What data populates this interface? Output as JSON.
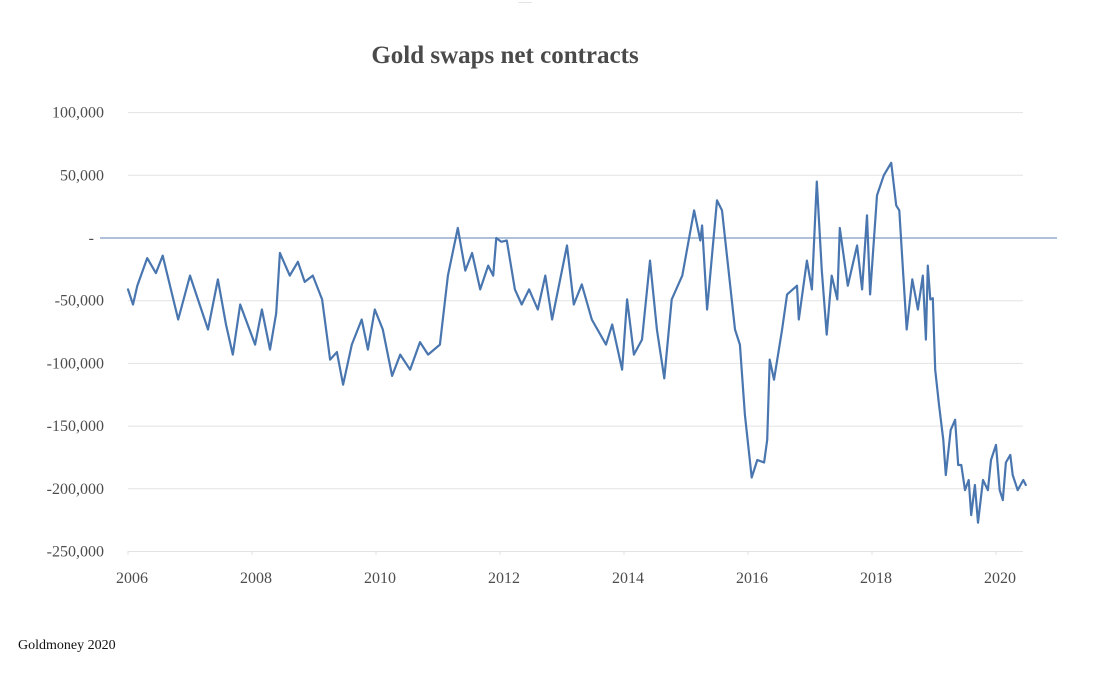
{
  "source_note": "Goldmoney 2020",
  "chart_data": {
    "type": "line",
    "title": "Gold swaps net  contracts",
    "xlabel": "",
    "ylabel": "",
    "xlim": [
      2006,
      2021
    ],
    "ylim": [
      -250000,
      100000
    ],
    "grid": true,
    "legend": "none",
    "y_ticks": [
      {
        "value": 100000,
        "label": "100,000"
      },
      {
        "value": 50000,
        "label": "50,000"
      },
      {
        "value": 0,
        "label": "-"
      },
      {
        "value": -50000,
        "label": "-50,000"
      },
      {
        "value": -100000,
        "label": "-100,000"
      },
      {
        "value": -150000,
        "label": "-150,000"
      },
      {
        "value": -200000,
        "label": "-200,000"
      },
      {
        "value": -250000,
        "label": "-250,000"
      }
    ],
    "x_ticks": [
      {
        "value": 2006,
        "label": "2006"
      },
      {
        "value": 2008,
        "label": "2008"
      },
      {
        "value": 2010,
        "label": "2010"
      },
      {
        "value": 2012,
        "label": "2012"
      },
      {
        "value": 2014,
        "label": "2014"
      },
      {
        "value": 2016,
        "label": "2016"
      },
      {
        "value": 2018,
        "label": "2018"
      },
      {
        "value": 2020,
        "label": "2020"
      }
    ],
    "series": [
      {
        "name": "Gold swaps net contracts",
        "color": "#4a76b0",
        "points": [
          [
            2006.0,
            -41000
          ],
          [
            2006.08,
            -53000
          ],
          [
            2006.15,
            -38000
          ],
          [
            2006.31,
            -16000
          ],
          [
            2006.45,
            -28000
          ],
          [
            2006.56,
            -14000
          ],
          [
            2006.81,
            -65000
          ],
          [
            2007.0,
            -30000
          ],
          [
            2007.29,
            -73000
          ],
          [
            2007.45,
            -33000
          ],
          [
            2007.58,
            -69000
          ],
          [
            2007.69,
            -93000
          ],
          [
            2007.81,
            -53000
          ],
          [
            2008.05,
            -85000
          ],
          [
            2008.16,
            -57000
          ],
          [
            2008.29,
            -89000
          ],
          [
            2008.39,
            -60000
          ],
          [
            2008.45,
            -12000
          ],
          [
            2008.61,
            -30000
          ],
          [
            2008.74,
            -19000
          ],
          [
            2008.85,
            -35000
          ],
          [
            2008.98,
            -30000
          ],
          [
            2009.13,
            -49000
          ],
          [
            2009.26,
            -97000
          ],
          [
            2009.37,
            -91000
          ],
          [
            2009.47,
            -117000
          ],
          [
            2009.61,
            -85000
          ],
          [
            2009.77,
            -65000
          ],
          [
            2009.87,
            -89000
          ],
          [
            2009.98,
            -57000
          ],
          [
            2010.11,
            -73000
          ],
          [
            2010.26,
            -110000
          ],
          [
            2010.39,
            -93000
          ],
          [
            2010.55,
            -105000
          ],
          [
            2010.71,
            -83000
          ],
          [
            2010.84,
            -93000
          ],
          [
            2011.03,
            -85000
          ],
          [
            2011.16,
            -30000
          ],
          [
            2011.32,
            8000
          ],
          [
            2011.44,
            -26000
          ],
          [
            2011.55,
            -12000
          ],
          [
            2011.68,
            -41000
          ],
          [
            2011.81,
            -22000
          ],
          [
            2011.89,
            -30000
          ],
          [
            2011.94,
            0
          ],
          [
            2012.02,
            -3000
          ],
          [
            2012.11,
            -2000
          ],
          [
            2012.24,
            -41000
          ],
          [
            2012.35,
            -53000
          ],
          [
            2012.47,
            -41000
          ],
          [
            2012.61,
            -57000
          ],
          [
            2012.73,
            -30000
          ],
          [
            2012.84,
            -65000
          ],
          [
            2013.08,
            -6000
          ],
          [
            2013.19,
            -53000
          ],
          [
            2013.32,
            -37000
          ],
          [
            2013.48,
            -65000
          ],
          [
            2013.71,
            -85000
          ],
          [
            2013.81,
            -69000
          ],
          [
            2013.97,
            -105000
          ],
          [
            2014.05,
            -49000
          ],
          [
            2014.16,
            -93000
          ],
          [
            2014.29,
            -81000
          ],
          [
            2014.42,
            -18000
          ],
          [
            2014.53,
            -73000
          ],
          [
            2014.65,
            -112000
          ],
          [
            2014.77,
            -49000
          ],
          [
            2014.94,
            -30000
          ],
          [
            2015.13,
            22000
          ],
          [
            2015.23,
            -2000
          ],
          [
            2015.26,
            10000
          ],
          [
            2015.34,
            -57000
          ],
          [
            2015.5,
            30000
          ],
          [
            2015.58,
            22000
          ],
          [
            2015.79,
            -73000
          ],
          [
            2015.87,
            -85000
          ],
          [
            2015.95,
            -141000
          ],
          [
            2016.06,
            -191000
          ],
          [
            2016.15,
            -177000
          ],
          [
            2016.26,
            -179000
          ],
          [
            2016.31,
            -161000
          ],
          [
            2016.35,
            -97000
          ],
          [
            2016.42,
            -113000
          ],
          [
            2016.55,
            -73000
          ],
          [
            2016.63,
            -45000
          ],
          [
            2016.79,
            -38000
          ],
          [
            2016.82,
            -65000
          ],
          [
            2016.95,
            -18000
          ],
          [
            2017.03,
            -41000
          ],
          [
            2017.11,
            45000
          ],
          [
            2017.19,
            -26000
          ],
          [
            2017.27,
            -77000
          ],
          [
            2017.35,
            -30000
          ],
          [
            2017.44,
            -49000
          ],
          [
            2017.48,
            8000
          ],
          [
            2017.61,
            -38000
          ],
          [
            2017.76,
            -6000
          ],
          [
            2017.84,
            -41000
          ],
          [
            2017.92,
            18000
          ],
          [
            2017.97,
            -45000
          ],
          [
            2018.08,
            34000
          ],
          [
            2018.19,
            50000
          ],
          [
            2018.31,
            60000
          ],
          [
            2018.39,
            26000
          ],
          [
            2018.44,
            22000
          ],
          [
            2018.5,
            -26000
          ],
          [
            2018.56,
            -73000
          ],
          [
            2018.65,
            -33000
          ],
          [
            2018.74,
            -57000
          ],
          [
            2018.82,
            -30000
          ],
          [
            2018.87,
            -81000
          ],
          [
            2018.9,
            -22000
          ],
          [
            2018.94,
            -49000
          ],
          [
            2018.98,
            -48000
          ],
          [
            2019.02,
            -105000
          ],
          [
            2019.08,
            -133000
          ],
          [
            2019.15,
            -161000
          ],
          [
            2019.19,
            -189000
          ],
          [
            2019.27,
            -153000
          ],
          [
            2019.34,
            -145000
          ],
          [
            2019.39,
            -181000
          ],
          [
            2019.44,
            -181000
          ],
          [
            2019.5,
            -201000
          ],
          [
            2019.56,
            -193000
          ],
          [
            2019.6,
            -221000
          ],
          [
            2019.66,
            -197000
          ],
          [
            2019.71,
            -227000
          ],
          [
            2019.79,
            -193000
          ],
          [
            2019.87,
            -201000
          ],
          [
            2019.92,
            -177000
          ],
          [
            2020.0,
            -165000
          ],
          [
            2020.06,
            -201000
          ],
          [
            2020.11,
            -209000
          ],
          [
            2020.16,
            -179000
          ],
          [
            2020.23,
            -173000
          ],
          [
            2020.27,
            -189000
          ],
          [
            2020.35,
            -201000
          ],
          [
            2020.44,
            -193000
          ],
          [
            2020.48,
            -197000
          ]
        ]
      }
    ]
  }
}
